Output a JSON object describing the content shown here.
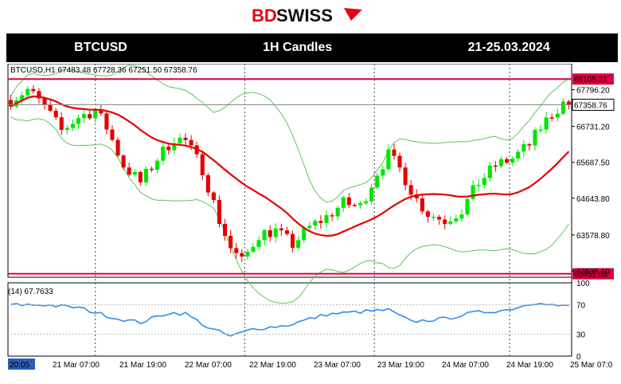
{
  "brand": {
    "name_bd": "BD",
    "name_swiss": "SWISS"
  },
  "banner": {
    "symbol": "BTCUSD",
    "timeframe": "1H Candles",
    "dates": "21-25.03.2024"
  },
  "chart_header": "BTCUSD,H1  67483.48 67728.36 67251.50 67358.76",
  "rsi_header": "(14) 67.7633",
  "colors": {
    "up": "#00e600",
    "down": "#e60000",
    "ma": "#e60000",
    "bands": "#5cc45c",
    "rsi": "#2f8fe6",
    "hline": "#d9003c",
    "accent": "#e30613"
  },
  "time_labels": [
    "20:05",
    "21 Mar 07:00",
    "21 Mar 19:00",
    "22 Mar 07:00",
    "22 Mar 19:00",
    "23 Mar 07:00",
    "23 Mar 19:00",
    "24 Mar 07:00",
    "24 Mar 19:00",
    "25 Mar 07:0"
  ],
  "chart_data": {
    "type": "candlestick",
    "price_axis": {
      "min": 62350,
      "max": 68550,
      "ticks": [
        "67796.20",
        "66731.20",
        "65687.50",
        "64643.80",
        "63578.80",
        "62535.10"
      ]
    },
    "horizontal_levels": [
      {
        "value": 68105.21,
        "label": "68105.21"
      },
      {
        "value": 62451.63,
        "label": "62451.63"
      }
    ],
    "current_price": {
      "value": 67358.76,
      "label": "67358.76"
    },
    "anchors": [
      [
        0,
        67500
      ],
      [
        3,
        67800
      ],
      [
        6,
        67300
      ],
      [
        9,
        66600
      ],
      [
        12,
        67000
      ],
      [
        15,
        67200
      ],
      [
        17,
        66700
      ],
      [
        20,
        65600
      ],
      [
        23,
        65100
      ],
      [
        26,
        65800
      ],
      [
        29,
        66400
      ],
      [
        31,
        66300
      ],
      [
        34,
        65500
      ],
      [
        37,
        64000
      ],
      [
        39,
        63200
      ],
      [
        41,
        62800
      ],
      [
        44,
        63600
      ],
      [
        47,
        63700
      ],
      [
        50,
        63300
      ],
      [
        53,
        63800
      ],
      [
        56,
        64100
      ],
      [
        59,
        64500
      ],
      [
        62,
        64400
      ],
      [
        65,
        65400
      ],
      [
        67,
        65900
      ],
      [
        69,
        65500
      ],
      [
        72,
        64600
      ],
      [
        74,
        64200
      ],
      [
        77,
        64000
      ],
      [
        80,
        64300
      ],
      [
        83,
        65100
      ],
      [
        86,
        65600
      ],
      [
        89,
        65800
      ],
      [
        92,
        66200
      ],
      [
        94,
        66700
      ],
      [
        96,
        67100
      ],
      [
        98,
        67400
      ]
    ],
    "rsi": {
      "axis_ticks": [
        100,
        70,
        30,
        0
      ],
      "last_value": 67.7633,
      "anchors": [
        [
          0,
          70
        ],
        [
          6,
          70
        ],
        [
          12,
          66
        ],
        [
          19,
          51
        ],
        [
          23,
          46
        ],
        [
          28,
          59
        ],
        [
          31,
          58
        ],
        [
          35,
          39
        ],
        [
          39,
          27
        ],
        [
          43,
          37
        ],
        [
          49,
          42
        ],
        [
          56,
          57
        ],
        [
          63,
          61
        ],
        [
          67,
          63
        ],
        [
          71,
          47
        ],
        [
          77,
          51
        ],
        [
          82,
          59
        ],
        [
          88,
          63
        ],
        [
          92,
          71
        ],
        [
          94,
          74
        ],
        [
          96,
          70
        ],
        [
          98,
          68
        ]
      ]
    }
  }
}
